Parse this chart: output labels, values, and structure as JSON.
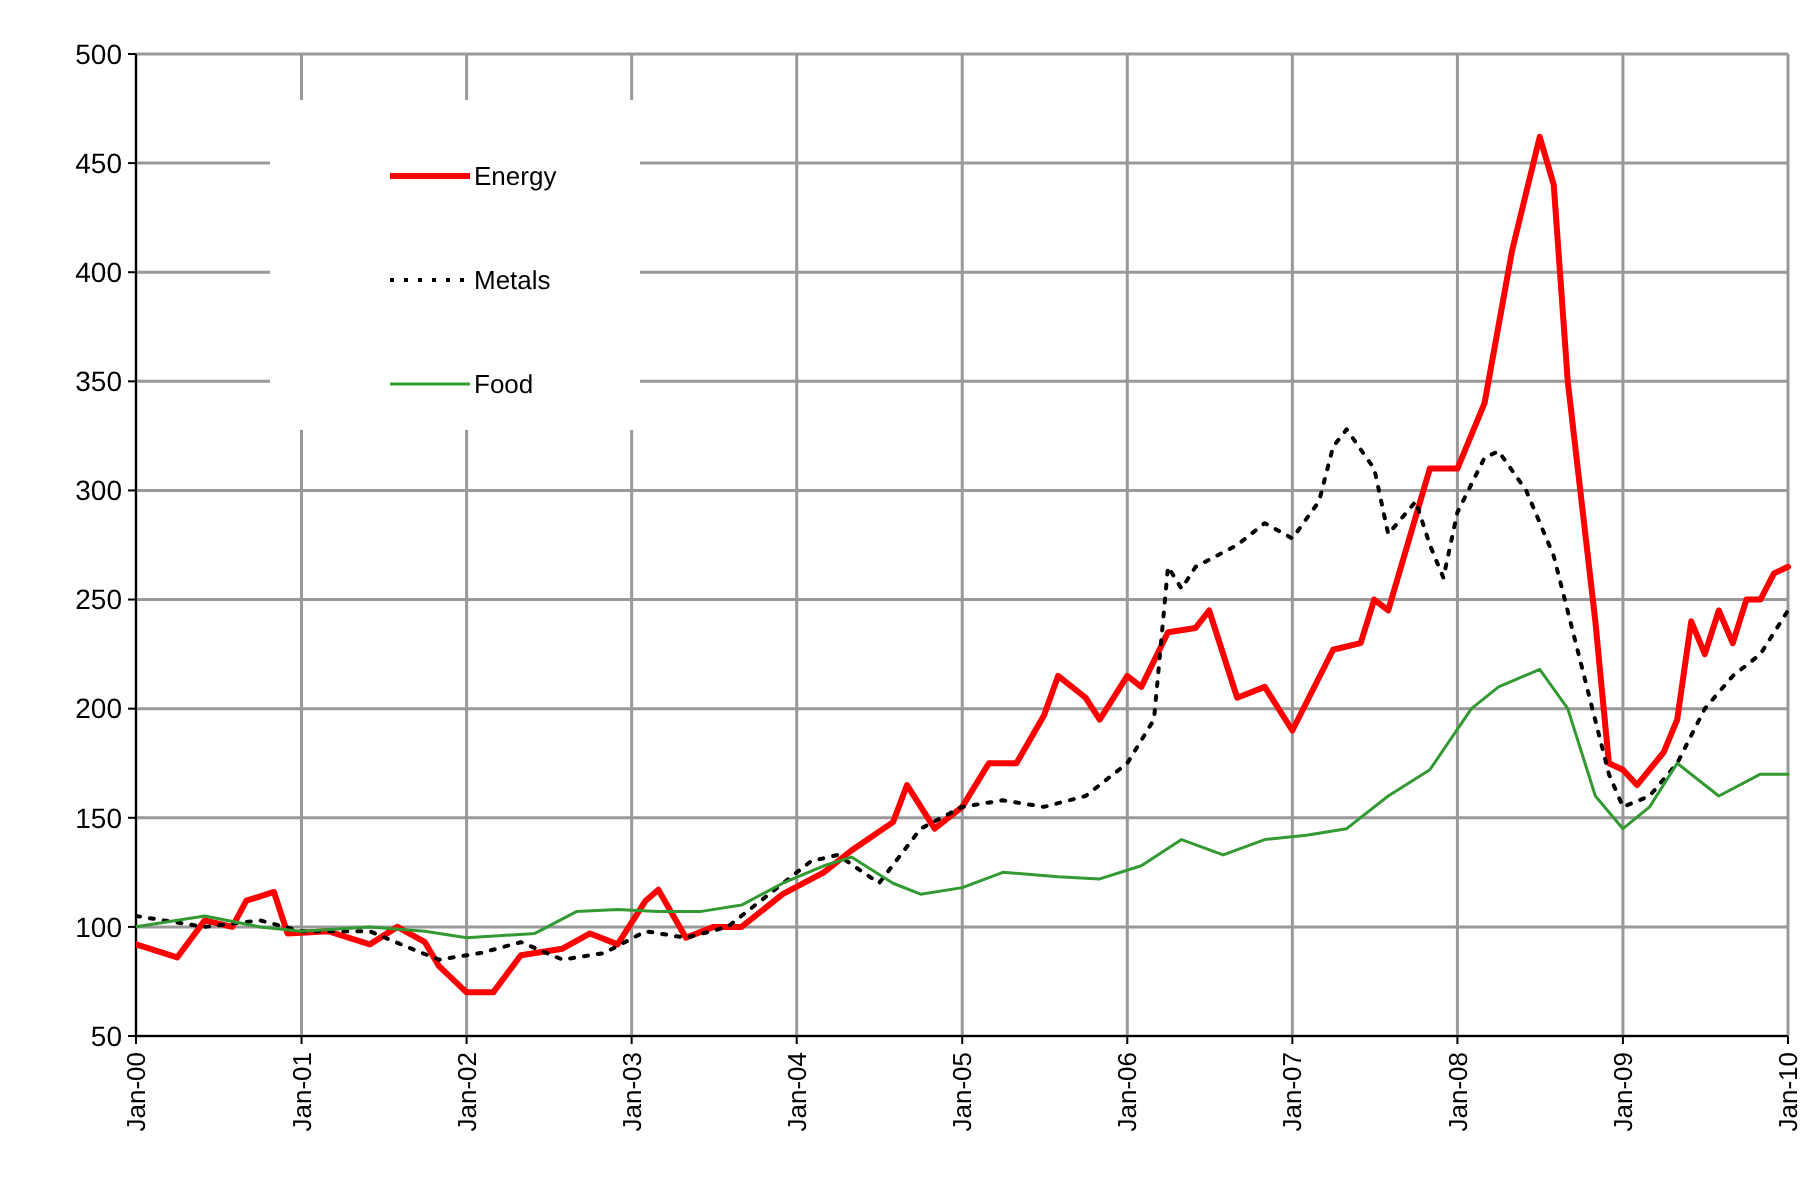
{
  "chart_data": {
    "type": "line",
    "grid": true,
    "legend": "top left",
    "marker": "none",
    "xlim": [
      "2000-01",
      "2010-01"
    ],
    "xticks": [
      {
        "value": "2000-01",
        "label": "Jan-00"
      },
      {
        "value": "2001-01",
        "label": "Jan-01"
      },
      {
        "value": "2002-01",
        "label": "Jan-02"
      },
      {
        "value": "2003-01",
        "label": "Jan-03"
      },
      {
        "value": "2004-01",
        "label": "Jan-04"
      },
      {
        "value": "2005-01",
        "label": "Jan-05"
      },
      {
        "value": "2006-01",
        "label": "Jan-06"
      },
      {
        "value": "2007-01",
        "label": "Jan-07"
      },
      {
        "value": "2008-01",
        "label": "Jan-08"
      },
      {
        "value": "2009-01",
        "label": "Jan-09"
      },
      {
        "value": "2010-01",
        "label": "Jan-10"
      }
    ],
    "ylim": [
      50,
      500
    ],
    "yticks": [
      50,
      100,
      150,
      200,
      250,
      300,
      350,
      400,
      450,
      500
    ],
    "series": [
      {
        "name": "Energy",
        "color": "#ff0000",
        "line_style": "solid",
        "x": [
          "2000-01",
          "2000-04",
          "2000-06",
          "2000-08",
          "2000-09",
          "2000-11",
          "2000-12",
          "2001-03",
          "2001-06",
          "2001-08",
          "2001-10",
          "2001-11",
          "2002-01",
          "2002-03",
          "2002-05",
          "2002-08",
          "2002-10",
          "2002-12",
          "2003-02",
          "2003-03",
          "2003-05",
          "2003-07",
          "2003-09",
          "2003-12",
          "2004-03",
          "2004-05",
          "2004-08",
          "2004-09",
          "2004-11",
          "2005-01",
          "2005-03",
          "2005-05",
          "2005-07",
          "2005-08",
          "2005-10",
          "2005-11",
          "2006-01",
          "2006-02",
          "2006-04",
          "2006-06",
          "2006-07",
          "2006-09",
          "2006-11",
          "2007-01",
          "2007-04",
          "2007-06",
          "2007-07",
          "2007-08",
          "2007-11",
          "2008-01",
          "2008-03",
          "2008-05",
          "2008-07",
          "2008-08",
          "2008-09",
          "2008-11",
          "2008-12",
          "2009-01",
          "2009-02",
          "2009-04",
          "2009-05",
          "2009-06",
          "2009-07",
          "2009-08",
          "2009-09",
          "2009-10",
          "2009-11",
          "2009-12",
          "2010-01"
        ],
        "values": [
          92,
          86,
          103,
          100,
          112,
          116,
          97,
          98,
          92,
          100,
          93,
          82,
          70,
          70,
          87,
          90,
          97,
          92,
          112,
          117,
          95,
          100,
          100,
          115,
          125,
          135,
          148,
          165,
          145,
          155,
          175,
          175,
          197,
          215,
          205,
          195,
          215,
          210,
          235,
          237,
          245,
          205,
          210,
          190,
          227,
          230,
          250,
          245,
          310,
          310,
          340,
          410,
          462,
          440,
          350,
          240,
          175,
          172,
          165,
          180,
          195,
          240,
          225,
          245,
          230,
          250,
          250,
          262,
          265
        ]
      },
      {
        "name": "Metals",
        "color": "#000000",
        "line_style": "dotted",
        "x": [
          "2000-01",
          "2000-06",
          "2000-10",
          "2001-01",
          "2001-06",
          "2001-09",
          "2001-11",
          "2002-02",
          "2002-05",
          "2002-08",
          "2002-11",
          "2003-02",
          "2003-05",
          "2003-08",
          "2003-11",
          "2004-02",
          "2004-04",
          "2004-07",
          "2004-10",
          "2005-01",
          "2005-04",
          "2005-07",
          "2005-10",
          "2006-01",
          "2006-03",
          "2006-04",
          "2006-05",
          "2006-06",
          "2006-09",
          "2006-11",
          "2007-01",
          "2007-03",
          "2007-04",
          "2007-05",
          "2007-07",
          "2007-08",
          "2007-10",
          "2007-11",
          "2007-12",
          "2008-01",
          "2008-03",
          "2008-04",
          "2008-06",
          "2008-08",
          "2008-10",
          "2008-12",
          "2009-01",
          "2009-03",
          "2009-05",
          "2009-07",
          "2009-09",
          "2009-11",
          "2010-01"
        ],
        "values": [
          105,
          100,
          103,
          98,
          98,
          90,
          85,
          88,
          93,
          85,
          88,
          98,
          95,
          100,
          115,
          130,
          133,
          120,
          145,
          155,
          158,
          155,
          160,
          175,
          195,
          265,
          255,
          265,
          275,
          285,
          278,
          295,
          320,
          328,
          310,
          280,
          295,
          275,
          260,
          290,
          315,
          318,
          300,
          270,
          220,
          170,
          155,
          160,
          175,
          200,
          215,
          225,
          245
        ]
      },
      {
        "name": "Food",
        "color": "#339933",
        "line_style": "solid",
        "x": [
          "2000-01",
          "2000-06",
          "2000-10",
          "2001-01",
          "2001-06",
          "2001-10",
          "2002-01",
          "2002-06",
          "2002-09",
          "2002-12",
          "2003-03",
          "2003-06",
          "2003-09",
          "2003-12",
          "2004-03",
          "2004-05",
          "2004-08",
          "2004-10",
          "2005-01",
          "2005-04",
          "2005-08",
          "2005-11",
          "2006-02",
          "2006-05",
          "2006-08",
          "2006-11",
          "2007-02",
          "2007-05",
          "2007-08",
          "2007-11",
          "2008-02",
          "2008-04",
          "2008-07",
          "2008-09",
          "2008-11",
          "2009-01",
          "2009-03",
          "2009-05",
          "2009-08",
          "2009-11",
          "2010-01"
        ],
        "values": [
          100,
          105,
          100,
          98,
          100,
          98,
          95,
          97,
          107,
          108,
          107,
          107,
          110,
          120,
          128,
          132,
          120,
          115,
          118,
          125,
          123,
          122,
          128,
          140,
          133,
          140,
          142,
          145,
          160,
          172,
          200,
          210,
          218,
          200,
          160,
          145,
          155,
          175,
          160,
          170,
          170
        ]
      }
    ]
  }
}
